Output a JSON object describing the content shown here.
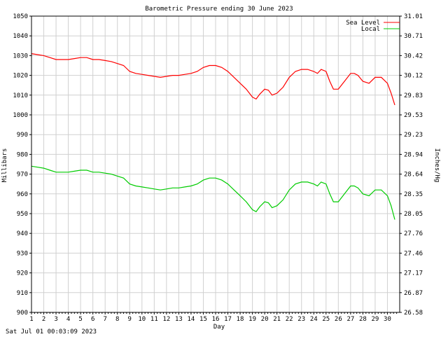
{
  "chart_data": {
    "type": "line",
    "title": "Barometric Pressure ending 30 June 2023",
    "xlabel": "Day",
    "ylabel_left": "Millibars",
    "ylabel_right": "Inches/Hg",
    "timestamp": "Sat Jul 01 00:03:09 2023",
    "xlim": [
      1,
      31
    ],
    "ylim": [
      900,
      1050
    ],
    "x_ticks": [
      "1",
      "2",
      "3",
      "4",
      "5",
      "6",
      "7",
      "8",
      "9",
      "10",
      "11",
      "12",
      "13",
      "14",
      "15",
      "16",
      "17",
      "18",
      "19",
      "20",
      "21",
      "22",
      "23",
      "24",
      "25",
      "26",
      "27",
      "28",
      "29",
      "30"
    ],
    "y_ticks_left": [
      "900",
      "910",
      "920",
      "930",
      "940",
      "950",
      "960",
      "970",
      "980",
      "990",
      "1000",
      "1010",
      "1020",
      "1030",
      "1040",
      "1050"
    ],
    "y_ticks_right": [
      "26.58",
      "26.87",
      "27.17",
      "27.46",
      "27.76",
      "28.05",
      "28.35",
      "28.64",
      "28.94",
      "29.23",
      "29.53",
      "29.83",
      "30.12",
      "30.42",
      "30.71",
      "31.01"
    ],
    "grid": true,
    "legend_position": "top-right",
    "series": [
      {
        "name": "Sea Level",
        "color": "#ff0000",
        "x": [
          1,
          1.5,
          2,
          2.5,
          3,
          3.5,
          4,
          4.5,
          5,
          5.5,
          6,
          6.5,
          7,
          7.5,
          8,
          8.5,
          9,
          9.5,
          10,
          10.5,
          11,
          11.5,
          12,
          12.5,
          13,
          13.5,
          14,
          14.5,
          15,
          15.5,
          16,
          16.5,
          17,
          17.5,
          18,
          18.5,
          19,
          19.3,
          19.6,
          20,
          20.3,
          20.6,
          21,
          21.5,
          22,
          22.5,
          23,
          23.5,
          24,
          24.3,
          24.6,
          25,
          25.3,
          25.6,
          26,
          26.5,
          27,
          27.3,
          27.6,
          28,
          28.5,
          29,
          29.5,
          30,
          30.3,
          30.6
        ],
        "values": [
          1031,
          1030.5,
          1030,
          1029,
          1028,
          1028,
          1028,
          1028.5,
          1029,
          1029,
          1028,
          1028,
          1027.5,
          1027,
          1026,
          1025,
          1022,
          1021,
          1020.5,
          1020,
          1019.5,
          1019,
          1019.5,
          1020,
          1020,
          1020.5,
          1021,
          1022,
          1024,
          1025,
          1025,
          1024,
          1022,
          1019,
          1016,
          1013,
          1009,
          1008,
          1010.5,
          1013,
          1012.5,
          1010,
          1011,
          1014,
          1019,
          1022,
          1023,
          1023,
          1022,
          1021,
          1023,
          1022,
          1017,
          1013,
          1013,
          1017,
          1021,
          1021,
          1020,
          1017,
          1016,
          1019,
          1019,
          1016,
          1011,
          1005
        ]
      },
      {
        "name": "Local",
        "color": "#00cc00",
        "x": [
          1,
          1.5,
          2,
          2.5,
          3,
          3.5,
          4,
          4.5,
          5,
          5.5,
          6,
          6.5,
          7,
          7.5,
          8,
          8.5,
          9,
          9.5,
          10,
          10.5,
          11,
          11.5,
          12,
          12.5,
          13,
          13.5,
          14,
          14.5,
          15,
          15.5,
          16,
          16.5,
          17,
          17.5,
          18,
          18.5,
          19,
          19.3,
          19.6,
          20,
          20.3,
          20.6,
          21,
          21.5,
          22,
          22.5,
          23,
          23.5,
          24,
          24.3,
          24.6,
          25,
          25.3,
          25.6,
          26,
          26.5,
          27,
          27.3,
          27.6,
          28,
          28.5,
          29,
          29.5,
          30,
          30.3,
          30.6
        ],
        "values": [
          974,
          973.5,
          973,
          972,
          971,
          971,
          971,
          971.5,
          972,
          972,
          971,
          971,
          970.5,
          970,
          969,
          968,
          965,
          964,
          963.5,
          963,
          962.5,
          962,
          962.5,
          963,
          963,
          963.5,
          964,
          965,
          967,
          968,
          968,
          967,
          965,
          962,
          959,
          956,
          952,
          951,
          953.5,
          956,
          955.5,
          953,
          954,
          957,
          962,
          965,
          966,
          966,
          965,
          964,
          966,
          965,
          960,
          956,
          956,
          960,
          964,
          964,
          963,
          960,
          959,
          962,
          962,
          959,
          954,
          947
        ]
      }
    ]
  }
}
